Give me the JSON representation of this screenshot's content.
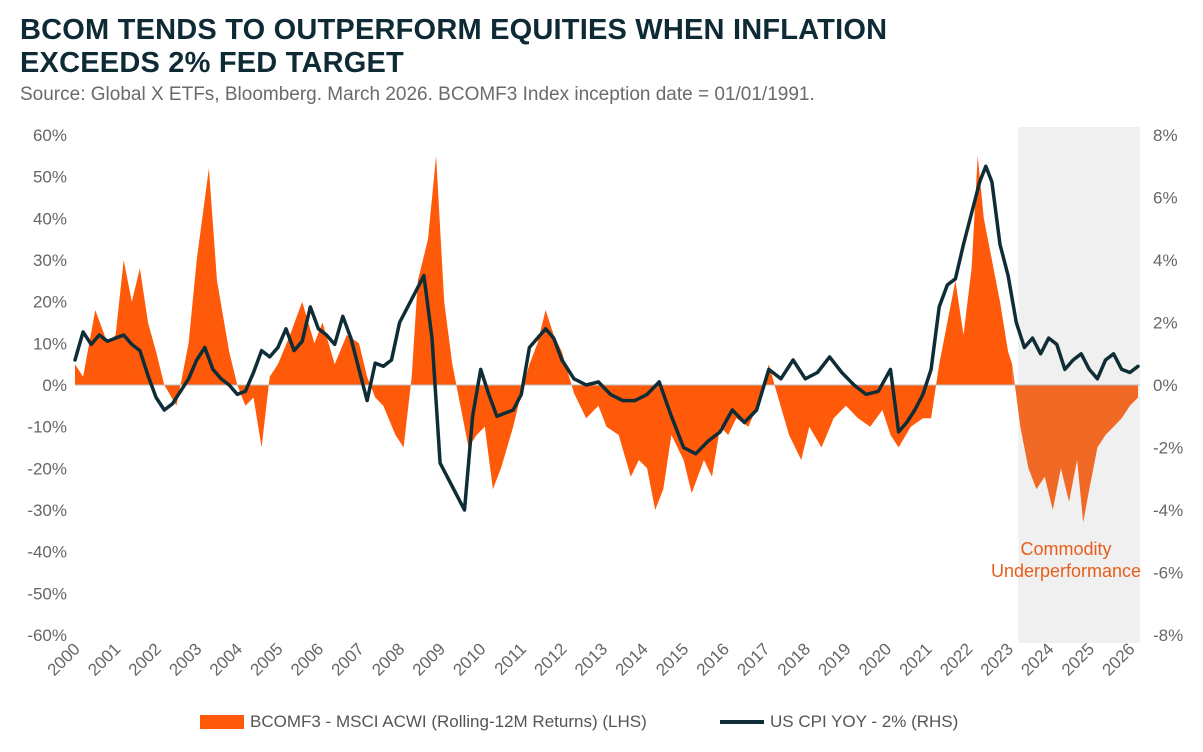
{
  "title_line1": "BCOM TENDS TO OUTPERFORM EQUITIES WHEN INFLATION",
  "title_line2": "EXCEEDS 2% FED TARGET",
  "source": "Source: Global X ETFs, Bloomberg. March 2026. BCOMF3 Index inception date = 01/01/1991.",
  "chart_data": {
    "type": "area",
    "x_labels": [
      "2000",
      "2001",
      "2002",
      "2003",
      "2004",
      "2005",
      "2006",
      "2007",
      "2008",
      "2009",
      "2010",
      "2011",
      "2012",
      "2013",
      "2014",
      "2015",
      "2016",
      "2017",
      "2018",
      "2019",
      "2020",
      "2021",
      "2022",
      "2023",
      "2024",
      "2025",
      "2026"
    ],
    "x_range": [
      2000,
      2026.25
    ],
    "left_axis": {
      "label_ticks": [
        "60%",
        "50%",
        "40%",
        "30%",
        "20%",
        "10%",
        "0%",
        "-10%",
        "-20%",
        "-30%",
        "-40%",
        "-50%",
        "-60%"
      ],
      "range": [
        -60,
        60
      ]
    },
    "right_axis": {
      "label_ticks": [
        "8%",
        "6%",
        "4%",
        "2%",
        "0%",
        "-2%",
        "-4%",
        "-6%",
        "-8%"
      ],
      "range": [
        -8,
        8
      ]
    },
    "series": [
      {
        "name": "BCOMF3 - MSCI ACWI (Rolling-12M Returns) (LHS)",
        "axis": "left",
        "style": "area",
        "color": "#ff5a0a",
        "highlight_color": "#f06a26",
        "x": [
          2000.0,
          2000.2,
          2000.5,
          2000.8,
          2001.0,
          2001.2,
          2001.4,
          2001.6,
          2001.8,
          2002.0,
          2002.2,
          2002.5,
          2002.8,
          2003.0,
          2003.3,
          2003.5,
          2003.8,
          2004.0,
          2004.2,
          2004.4,
          2004.6,
          2004.8,
          2005.0,
          2005.3,
          2005.6,
          2005.9,
          2006.1,
          2006.4,
          2006.7,
          2007.0,
          2007.2,
          2007.4,
          2007.6,
          2007.9,
          2008.1,
          2008.3,
          2008.45,
          2008.7,
          2008.9,
          2009.1,
          2009.3,
          2009.5,
          2009.7,
          2009.9,
          2010.1,
          2010.3,
          2010.5,
          2010.8,
          2011.0,
          2011.2,
          2011.4,
          2011.6,
          2011.8,
          2012.0,
          2012.3,
          2012.6,
          2012.9,
          2013.1,
          2013.4,
          2013.7,
          2013.9,
          2014.1,
          2014.3,
          2014.5,
          2014.7,
          2015.0,
          2015.2,
          2015.5,
          2015.7,
          2015.9,
          2016.1,
          2016.3,
          2016.6,
          2016.9,
          2017.1,
          2017.3,
          2017.6,
          2017.9,
          2018.1,
          2018.4,
          2018.7,
          2019.0,
          2019.3,
          2019.6,
          2019.9,
          2020.1,
          2020.3,
          2020.6,
          2020.9,
          2021.1,
          2021.3,
          2021.5,
          2021.7,
          2021.9,
          2022.1,
          2022.25,
          2022.4,
          2022.6,
          2022.8,
          2023.0,
          2023.1,
          2023.3,
          2023.5,
          2023.7,
          2023.9,
          2024.1,
          2024.3,
          2024.5,
          2024.7,
          2024.85,
          2025.0,
          2025.2,
          2025.4,
          2025.6,
          2025.8,
          2026.0,
          2026.2
        ],
        "values": [
          5,
          2,
          18,
          10,
          12,
          30,
          20,
          28,
          15,
          8,
          0,
          -5,
          10,
          30,
          52,
          25,
          8,
          0,
          -5,
          -3,
          -15,
          2,
          5,
          12,
          20,
          10,
          15,
          5,
          12,
          10,
          2,
          -3,
          -5,
          -12,
          -15,
          2,
          25,
          35,
          55,
          20,
          5,
          -5,
          -15,
          -12,
          -10,
          -25,
          -20,
          -10,
          -2,
          5,
          10,
          18,
          12,
          8,
          -2,
          -8,
          -5,
          -10,
          -12,
          -22,
          -18,
          -20,
          -30,
          -25,
          -12,
          -18,
          -26,
          -18,
          -22,
          -10,
          -12,
          -8,
          -10,
          -3,
          5,
          -2,
          -12,
          -18,
          -10,
          -15,
          -8,
          -5,
          -8,
          -10,
          -6,
          -12,
          -15,
          -10,
          -8,
          -8,
          5,
          15,
          25,
          12,
          28,
          55,
          40,
          30,
          20,
          8,
          5,
          -10,
          -20,
          -25,
          -22,
          -30,
          -20,
          -28,
          -18,
          -33,
          -25,
          -15,
          -12,
          -10,
          -8,
          -5,
          -3
        ]
      },
      {
        "name": "US CPI YOY - 2% (RHS)",
        "axis": "right",
        "style": "line",
        "color": "#0f2d36",
        "x": [
          2000.0,
          2000.2,
          2000.4,
          2000.6,
          2000.8,
          2001.0,
          2001.2,
          2001.4,
          2001.6,
          2001.8,
          2002.0,
          2002.2,
          2002.4,
          2002.6,
          2002.8,
          2003.0,
          2003.2,
          2003.4,
          2003.6,
          2003.8,
          2004.0,
          2004.2,
          2004.4,
          2004.6,
          2004.8,
          2005.0,
          2005.2,
          2005.4,
          2005.6,
          2005.8,
          2006.0,
          2006.2,
          2006.4,
          2006.6,
          2006.8,
          2007.0,
          2007.2,
          2007.4,
          2007.6,
          2007.8,
          2008.0,
          2008.2,
          2008.4,
          2008.6,
          2008.8,
          2009.0,
          2009.2,
          2009.4,
          2009.6,
          2009.8,
          2010.0,
          2010.2,
          2010.4,
          2010.6,
          2010.8,
          2011.0,
          2011.2,
          2011.4,
          2011.6,
          2011.8,
          2012.0,
          2012.3,
          2012.6,
          2012.9,
          2013.2,
          2013.5,
          2013.8,
          2014.1,
          2014.4,
          2014.7,
          2015.0,
          2015.3,
          2015.6,
          2015.9,
          2016.2,
          2016.5,
          2016.8,
          2017.1,
          2017.4,
          2017.7,
          2018.0,
          2018.3,
          2018.6,
          2018.9,
          2019.2,
          2019.5,
          2019.8,
          2020.1,
          2020.3,
          2020.5,
          2020.7,
          2020.9,
          2021.1,
          2021.3,
          2021.5,
          2021.7,
          2021.9,
          2022.1,
          2022.3,
          2022.45,
          2022.6,
          2022.8,
          2023.0,
          2023.2,
          2023.4,
          2023.6,
          2023.8,
          2024.0,
          2024.2,
          2024.4,
          2024.6,
          2024.8,
          2025.0,
          2025.2,
          2025.4,
          2025.6,
          2025.8,
          2026.0,
          2026.2
        ],
        "values": [
          0.8,
          1.7,
          1.3,
          1.6,
          1.4,
          1.5,
          1.6,
          1.3,
          1.1,
          0.3,
          -0.4,
          -0.8,
          -0.6,
          -0.2,
          0.2,
          0.8,
          1.2,
          0.5,
          0.2,
          0.0,
          -0.3,
          -0.2,
          0.4,
          1.1,
          0.9,
          1.2,
          1.8,
          1.1,
          1.4,
          2.5,
          1.8,
          1.6,
          1.3,
          2.2,
          1.5,
          0.5,
          -0.5,
          0.7,
          0.6,
          0.8,
          2.0,
          2.5,
          3.0,
          3.5,
          1.5,
          -2.5,
          -3.0,
          -3.5,
          -4.0,
          -1.0,
          0.5,
          -0.3,
          -1.0,
          -0.9,
          -0.8,
          -0.3,
          1.2,
          1.5,
          1.8,
          1.5,
          0.8,
          0.2,
          0.0,
          0.1,
          -0.3,
          -0.5,
          -0.5,
          -0.3,
          0.1,
          -1.0,
          -2.0,
          -2.2,
          -1.8,
          -1.5,
          -0.8,
          -1.2,
          -0.8,
          0.5,
          0.2,
          0.8,
          0.2,
          0.4,
          0.9,
          0.4,
          0.0,
          -0.3,
          -0.2,
          0.5,
          -1.5,
          -1.2,
          -0.8,
          -0.3,
          0.5,
          2.5,
          3.2,
          3.4,
          4.5,
          5.5,
          6.5,
          7.0,
          6.5,
          4.5,
          3.5,
          2.0,
          1.2,
          1.5,
          1.0,
          1.5,
          1.3,
          0.5,
          0.8,
          1.0,
          0.5,
          0.2,
          0.8,
          1.0,
          0.5,
          0.4,
          0.6
        ]
      }
    ],
    "shaded_region": {
      "x_start": 2023.25,
      "x_end": 2026.25,
      "color": "#f0f0f0"
    },
    "annotation": {
      "line1": "Commodity",
      "line2": "Underperformance",
      "color": "#e85d1a"
    },
    "legend_placement": "bottom",
    "grid": false
  }
}
